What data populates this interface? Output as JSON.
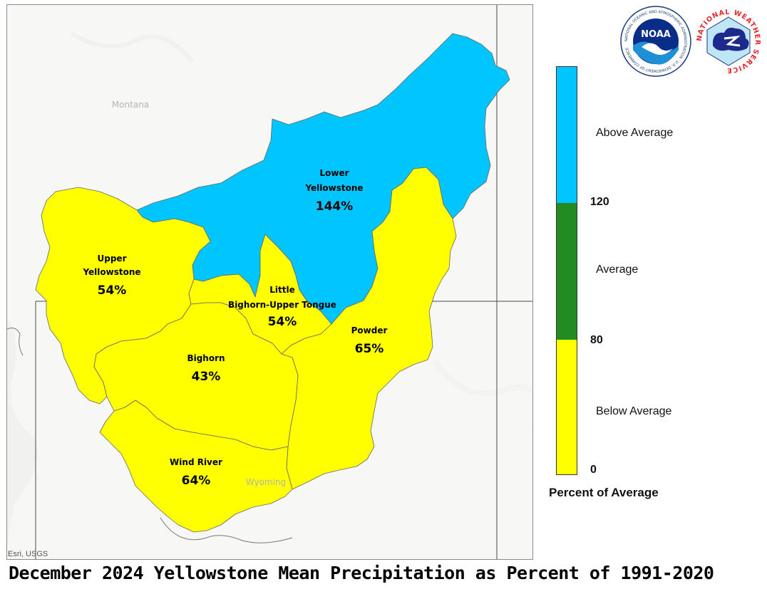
{
  "title": "December 2024 Yellowstone Mean Precipitation as Percent of 1991-2020",
  "credit": "Esri, USGS",
  "state_labels": {
    "montana": "Montana",
    "wyoming": "Wyoming"
  },
  "basins": [
    {
      "id": "lower-yellowstone",
      "name_lines": [
        "Lower",
        "Yellowstone"
      ],
      "percent": "144%",
      "value": 144,
      "category": "Above Average"
    },
    {
      "id": "upper-yellowstone",
      "name_lines": [
        "Upper",
        "Yellowstone"
      ],
      "percent": "54%",
      "value": 54,
      "category": "Below Average"
    },
    {
      "id": "little-bighorn-upper-tongue",
      "name_lines": [
        "Little",
        "Bighorn-Upper Tongue"
      ],
      "percent": "54%",
      "value": 54,
      "category": "Below Average"
    },
    {
      "id": "powder",
      "name_lines": [
        "Powder"
      ],
      "percent": "65%",
      "value": 65,
      "category": "Below Average"
    },
    {
      "id": "bighorn",
      "name_lines": [
        "Bighorn"
      ],
      "percent": "43%",
      "value": 43,
      "category": "Below Average"
    },
    {
      "id": "wind-river",
      "name_lines": [
        "Wind River"
      ],
      "percent": "64%",
      "value": 64,
      "category": "Below Average"
    }
  ],
  "legend": {
    "title": "Percent of Average",
    "categories": [
      {
        "label": "Above Average",
        "color": "#00c5ff"
      },
      {
        "label": "Average",
        "color": "#228b22"
      },
      {
        "label": "Below Average",
        "color": "#ffff00"
      }
    ],
    "breaks": [
      "120",
      "80",
      "0"
    ]
  },
  "colors": {
    "above": "#00c5ff",
    "average": "#228b22",
    "below": "#ffff00",
    "basemap": "#f7f7f6",
    "borders": "#555555"
  },
  "logos": {
    "noaa": {
      "text": "NOAA",
      "ring_text": "NATIONAL OCEANIC AND ATMOSPHERIC ADMINISTRATION · U.S. DEPARTMENT OF COMMERCE"
    },
    "nws": {
      "ring_text": "NATIONAL WEATHER SERVICE"
    }
  }
}
